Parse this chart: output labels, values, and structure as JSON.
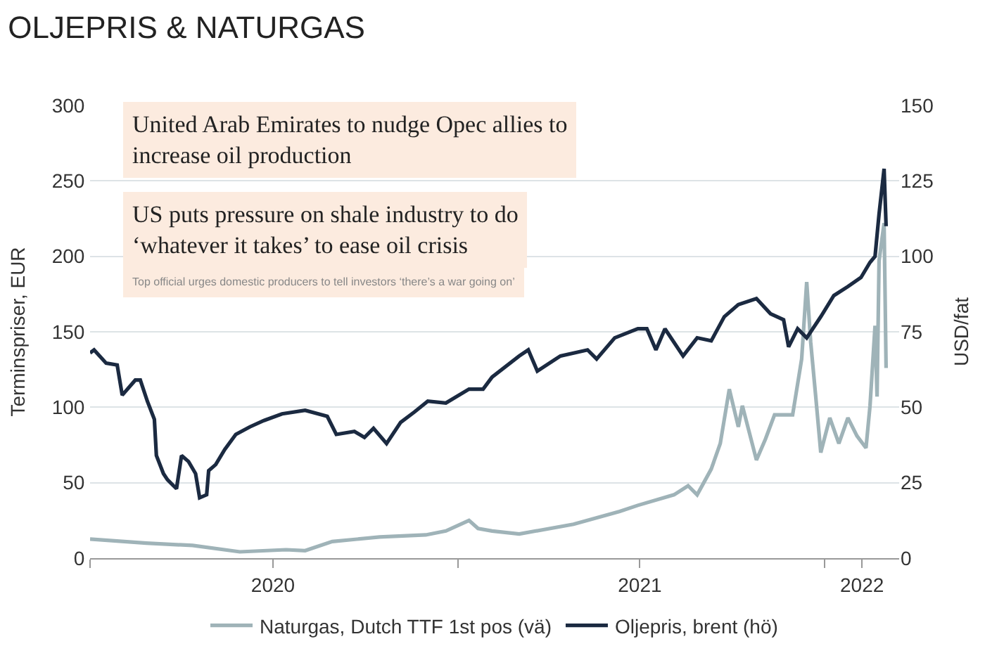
{
  "chart_data": {
    "type": "line",
    "title": "OLJEPRIS & NATURGAS",
    "ylabel": "Terminspriser, EUR",
    "y2label": "USD/fat",
    "annotations": [
      "United Arab Emirates to nudge Opec allies to increase oil production",
      "US puts pressure on shale industry to do ‘whatever it takes’ to ease oil crisis",
      "Top official urges domestic producers to tell investors ‘there’s a war going on’"
    ],
    "series": [
      {
        "name": "Naturgas, Dutch TTF 1st pos (vä)",
        "color": "#9fb3b8",
        "x": [
          "2020-01-01",
          "2020-02-26",
          "2020-04-12",
          "2020-05-29",
          "2020-07-14",
          "2020-08-02",
          "2020-08-29",
          "2020-10-15",
          "2020-11-30",
          "2020-12-20",
          "2021-01-12",
          "2021-01-21",
          "2021-02-04",
          "2021-03-03",
          "2021-04-26",
          "2021-06-11",
          "2021-06-29",
          "2021-08-04",
          "2021-08-18",
          "2021-08-27",
          "2021-09-10",
          "2021-09-19",
          "2021-09-28",
          "2021-10-07",
          "2021-10-11",
          "2021-10-25",
          "2021-11-03",
          "2021-11-12",
          "2021-11-30",
          "2021-12-09",
          "2021-12-14",
          "2021-12-18",
          "2021-12-23",
          "2021-12-28",
          "2022-01-06",
          "2022-01-15",
          "2022-01-24",
          "2022-02-02",
          "2022-02-11",
          "2022-02-15",
          "2022-02-20",
          "2022-02-22",
          "2022-02-24",
          "2022-03-01",
          "2022-03-03"
        ],
        "values": [
          12.6,
          10,
          8.4,
          4.2,
          5.6,
          5,
          11,
          14,
          15.4,
          18,
          25,
          19.7,
          18,
          16,
          22.5,
          31,
          35,
          42,
          48,
          42,
          59,
          76,
          112,
          87,
          101,
          65,
          79,
          95,
          95,
          132,
          183,
          143,
          107,
          70,
          93,
          76,
          93,
          81,
          73,
          101,
          154,
          107,
          197,
          222,
          126
        ]
      },
      {
        "name": "Oljepris, brent (hö)",
        "color": "#1b2a41",
        "axis": "y2",
        "x": [
          "2020-01-01",
          "2020-01-05",
          "2020-01-17",
          "2020-01-28",
          "2020-02-02",
          "2020-02-15",
          "2020-02-20",
          "2020-02-27",
          "2020-03-05",
          "2020-03-07",
          "2020-03-14",
          "2020-03-18",
          "2020-03-27",
          "2020-04-01",
          "2020-04-08",
          "2020-04-15",
          "2020-04-19",
          "2020-04-26",
          "2020-04-28",
          "2020-05-05",
          "2020-05-14",
          "2020-05-25",
          "2020-06-08",
          "2020-06-22",
          "2020-07-10",
          "2020-08-02",
          "2020-08-24",
          "2020-09-02",
          "2020-09-20",
          "2020-09-30",
          "2020-10-09",
          "2020-10-22",
          "2020-11-05",
          "2020-11-19",
          "2020-12-02",
          "2020-12-20",
          "2021-01-12",
          "2021-01-26",
          "2021-02-04",
          "2021-03-03",
          "2021-03-12",
          "2021-03-21",
          "2021-04-13",
          "2021-05-10",
          "2021-05-19",
          "2021-06-06",
          "2021-06-29",
          "2021-07-08",
          "2021-07-17",
          "2021-07-26",
          "2021-08-13",
          "2021-08-27",
          "2021-09-10",
          "2021-09-23",
          "2021-10-07",
          "2021-10-25",
          "2021-11-08",
          "2021-11-21",
          "2021-11-26",
          "2021-12-05",
          "2021-12-14",
          "2021-12-28",
          "2022-01-10",
          "2022-01-24",
          "2022-02-06",
          "2022-02-15",
          "2022-02-20",
          "2022-02-24",
          "2022-03-01",
          "2022-03-03"
        ],
        "values": [
          68,
          69,
          64.6,
          64,
          54,
          59,
          59,
          52,
          46,
          34,
          28,
          26,
          23,
          34,
          32,
          28,
          20,
          21,
          29,
          31,
          36,
          41,
          43.5,
          45.6,
          47.8,
          49,
          47,
          41,
          42,
          40,
          43,
          38,
          45,
          48.5,
          52,
          51.4,
          56,
          56,
          60,
          67,
          69,
          62,
          67,
          69,
          66,
          73,
          76,
          76,
          69,
          76,
          67,
          73,
          72,
          80,
          84,
          86,
          81,
          79,
          70,
          76,
          73,
          80,
          87,
          90,
          93,
          98,
          100,
          114,
          129,
          110
        ]
      }
    ],
    "xlim": [
      "2020-01-01",
      "2022-03-16"
    ],
    "xticks": [
      {
        "value": "2020-01-01",
        "label": null
      },
      {
        "value": "2020-07-01",
        "label": "2020"
      },
      {
        "value": "2021-01-01",
        "label": null
      },
      {
        "value": "2021-07-01",
        "label": "2021"
      },
      {
        "value": "2022-01-01",
        "label": null
      },
      {
        "value": "2022-02-07",
        "label": "2022"
      }
    ],
    "ylim": [
      0,
      300
    ],
    "yticks": [
      0,
      50,
      100,
      150,
      200,
      250,
      300
    ],
    "y2lim": [
      0,
      150
    ],
    "y2ticks": [
      0,
      25,
      50,
      75,
      100,
      125,
      150
    ],
    "grid": "y",
    "legend": "bottom"
  }
}
